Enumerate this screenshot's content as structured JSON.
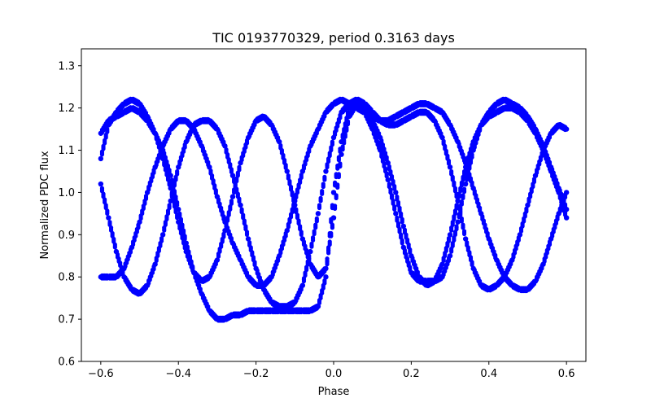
{
  "chart_data": {
    "type": "scatter",
    "title": "TIC 0193770329, period 0.3163 days",
    "xlabel": "Phase",
    "ylabel": "Normalized PDC flux",
    "xlim": [
      -0.65,
      0.65
    ],
    "ylim": [
      0.6,
      1.34
    ],
    "xticks": [
      -0.6,
      -0.4,
      -0.2,
      0.0,
      0.2,
      0.4,
      0.6
    ],
    "xtick_labels": [
      "−0.6",
      "−0.4",
      "−0.2",
      "0.0",
      "0.2",
      "0.4",
      "0.6"
    ],
    "yticks": [
      0.6,
      0.7,
      0.8,
      0.9,
      1.0,
      1.1,
      1.2,
      1.3
    ],
    "ytick_labels": [
      "0.6",
      "0.7",
      "0.8",
      "0.9",
      "1.0",
      "1.1",
      "1.2",
      "1.3"
    ],
    "grid": false,
    "marker_color": "#0000ff",
    "series": [
      {
        "x": [
          -0.6,
          -0.58,
          -0.56,
          -0.54,
          -0.52,
          -0.5,
          -0.48,
          -0.46,
          -0.44,
          -0.42,
          -0.4,
          -0.38,
          -0.36,
          -0.34,
          -0.32,
          -0.3,
          -0.28,
          -0.26,
          -0.24,
          -0.22,
          -0.2,
          -0.18,
          -0.16,
          -0.14,
          -0.12,
          -0.1,
          -0.08,
          -0.06,
          -0.04,
          -0.02,
          0.0,
          0.02,
          0.04,
          0.06,
          0.08,
          0.1,
          0.12,
          0.14,
          0.16,
          0.18,
          0.2,
          0.22,
          0.24,
          0.26,
          0.28,
          0.3,
          0.32,
          0.34,
          0.36,
          0.38,
          0.4,
          0.42,
          0.44,
          0.46,
          0.48,
          0.5,
          0.52,
          0.54,
          0.56,
          0.58,
          0.6
        ],
        "y": [
          1.08,
          1.16,
          1.19,
          1.21,
          1.22,
          1.21,
          1.18,
          1.14,
          1.1,
          1.04,
          0.96,
          0.88,
          0.81,
          0.76,
          0.72,
          0.7,
          0.7,
          0.71,
          0.71,
          0.72,
          0.72,
          0.72,
          0.72,
          0.72,
          0.72,
          0.72,
          0.72,
          0.72,
          0.73,
          0.8,
          1.0,
          1.12,
          1.2,
          1.21,
          1.19,
          1.15,
          1.1,
          1.03,
          0.95,
          0.87,
          0.81,
          0.79,
          0.79,
          0.79,
          0.8,
          0.85,
          0.93,
          1.02,
          1.1,
          1.16,
          1.19,
          1.21,
          1.22,
          1.21,
          1.2,
          1.18,
          1.15,
          1.11,
          1.06,
          1.01,
          0.96
        ]
      },
      {
        "x": [
          -0.6,
          -0.58,
          -0.56,
          -0.54,
          -0.52,
          -0.5,
          -0.48,
          -0.46,
          -0.44,
          -0.42,
          -0.4,
          -0.38,
          -0.36,
          -0.34,
          -0.32,
          -0.3,
          -0.28,
          -0.26,
          -0.24,
          -0.22,
          -0.2,
          -0.18,
          -0.16,
          -0.14,
          -0.12,
          -0.1,
          -0.08,
          -0.06,
          -0.04,
          -0.02,
          0.0,
          0.02,
          0.04,
          0.06,
          0.08,
          0.1,
          0.12,
          0.14,
          0.16,
          0.18,
          0.2,
          0.22,
          0.24,
          0.26,
          0.28,
          0.3,
          0.32,
          0.34,
          0.36,
          0.38,
          0.4,
          0.42,
          0.44,
          0.46,
          0.48,
          0.5,
          0.52,
          0.54,
          0.56,
          0.58,
          0.6
        ],
        "y": [
          0.8,
          0.8,
          0.8,
          0.82,
          0.87,
          0.93,
          1.0,
          1.06,
          1.11,
          1.15,
          1.17,
          1.17,
          1.15,
          1.11,
          1.06,
          0.99,
          0.93,
          0.88,
          0.84,
          0.8,
          0.78,
          0.78,
          0.8,
          0.85,
          0.91,
          0.98,
          1.05,
          1.11,
          1.15,
          1.19,
          1.21,
          1.22,
          1.21,
          1.2,
          1.19,
          1.18,
          1.17,
          1.17,
          1.18,
          1.19,
          1.2,
          1.21,
          1.21,
          1.2,
          1.19,
          1.16,
          1.12,
          1.07,
          1.01,
          0.95,
          0.89,
          0.84,
          0.8,
          0.78,
          0.77,
          0.77,
          0.79,
          0.83,
          0.89,
          0.95,
          1.0
        ]
      },
      {
        "x": [
          -0.6,
          -0.58,
          -0.56,
          -0.54,
          -0.52,
          -0.5,
          -0.48,
          -0.46,
          -0.44,
          -0.42,
          -0.4,
          -0.38,
          -0.36,
          -0.34,
          -0.32,
          -0.3,
          -0.28,
          -0.26,
          -0.24,
          -0.22,
          -0.2,
          -0.18,
          -0.16,
          -0.14,
          -0.12,
          -0.1,
          -0.08,
          -0.06,
          -0.04,
          -0.02,
          0.0,
          0.02,
          0.04,
          0.06,
          0.08,
          0.1,
          0.12,
          0.14,
          0.16,
          0.18,
          0.2,
          0.22,
          0.24,
          0.26,
          0.28,
          0.3,
          0.32,
          0.34,
          0.36,
          0.38,
          0.4,
          0.42,
          0.44,
          0.46,
          0.48,
          0.5,
          0.52,
          0.54,
          0.56,
          0.58,
          0.6
        ],
        "y": [
          1.02,
          0.94,
          0.86,
          0.8,
          0.77,
          0.76,
          0.78,
          0.83,
          0.9,
          0.98,
          1.06,
          1.12,
          1.16,
          1.17,
          1.17,
          1.15,
          1.11,
          1.04,
          0.97,
          0.89,
          0.82,
          0.77,
          0.74,
          0.73,
          0.73,
          0.74,
          0.78,
          0.86,
          0.95,
          1.05,
          1.13,
          1.19,
          1.21,
          1.22,
          1.21,
          1.19,
          1.17,
          1.16,
          1.16,
          1.17,
          1.18,
          1.19,
          1.19,
          1.17,
          1.13,
          1.06,
          0.98,
          0.89,
          0.82,
          0.78,
          0.77,
          0.78,
          0.8,
          0.84,
          0.9,
          0.97,
          1.04,
          1.1,
          1.14,
          1.16,
          1.15
        ]
      },
      {
        "x": [
          -0.6,
          -0.58,
          -0.56,
          -0.54,
          -0.52,
          -0.5,
          -0.48,
          -0.46,
          -0.44,
          -0.42,
          -0.4,
          -0.38,
          -0.36,
          -0.34,
          -0.32,
          -0.3,
          -0.28,
          -0.26,
          -0.24,
          -0.22,
          -0.2,
          -0.18,
          -0.16,
          -0.14,
          -0.12,
          -0.1,
          -0.08,
          -0.06,
          -0.04,
          -0.02,
          0.0,
          0.02,
          0.04,
          0.06,
          0.08,
          0.1,
          0.12,
          0.14,
          0.16,
          0.18,
          0.2,
          0.22,
          0.24,
          0.26,
          0.28,
          0.3,
          0.32,
          0.34,
          0.36,
          0.38,
          0.4,
          0.42,
          0.44,
          0.46,
          0.48,
          0.5,
          0.52,
          0.54,
          0.56,
          0.58,
          0.6
        ],
        "y": [
          1.14,
          1.17,
          1.18,
          1.19,
          1.2,
          1.19,
          1.17,
          1.14,
          1.08,
          1.01,
          0.93,
          0.86,
          0.81,
          0.79,
          0.8,
          0.84,
          0.91,
          0.99,
          1.07,
          1.13,
          1.17,
          1.18,
          1.16,
          1.12,
          1.05,
          0.97,
          0.89,
          0.83,
          0.8,
          0.82,
          0.94,
          1.09,
          1.18,
          1.21,
          1.2,
          1.17,
          1.13,
          1.07,
          1.0,
          0.92,
          0.85,
          0.8,
          0.78,
          0.79,
          0.83,
          0.9,
          0.98,
          1.06,
          1.12,
          1.16,
          1.18,
          1.19,
          1.2,
          1.2,
          1.19,
          1.17,
          1.14,
          1.1,
          1.05,
          1.0,
          0.94
        ]
      }
    ]
  }
}
